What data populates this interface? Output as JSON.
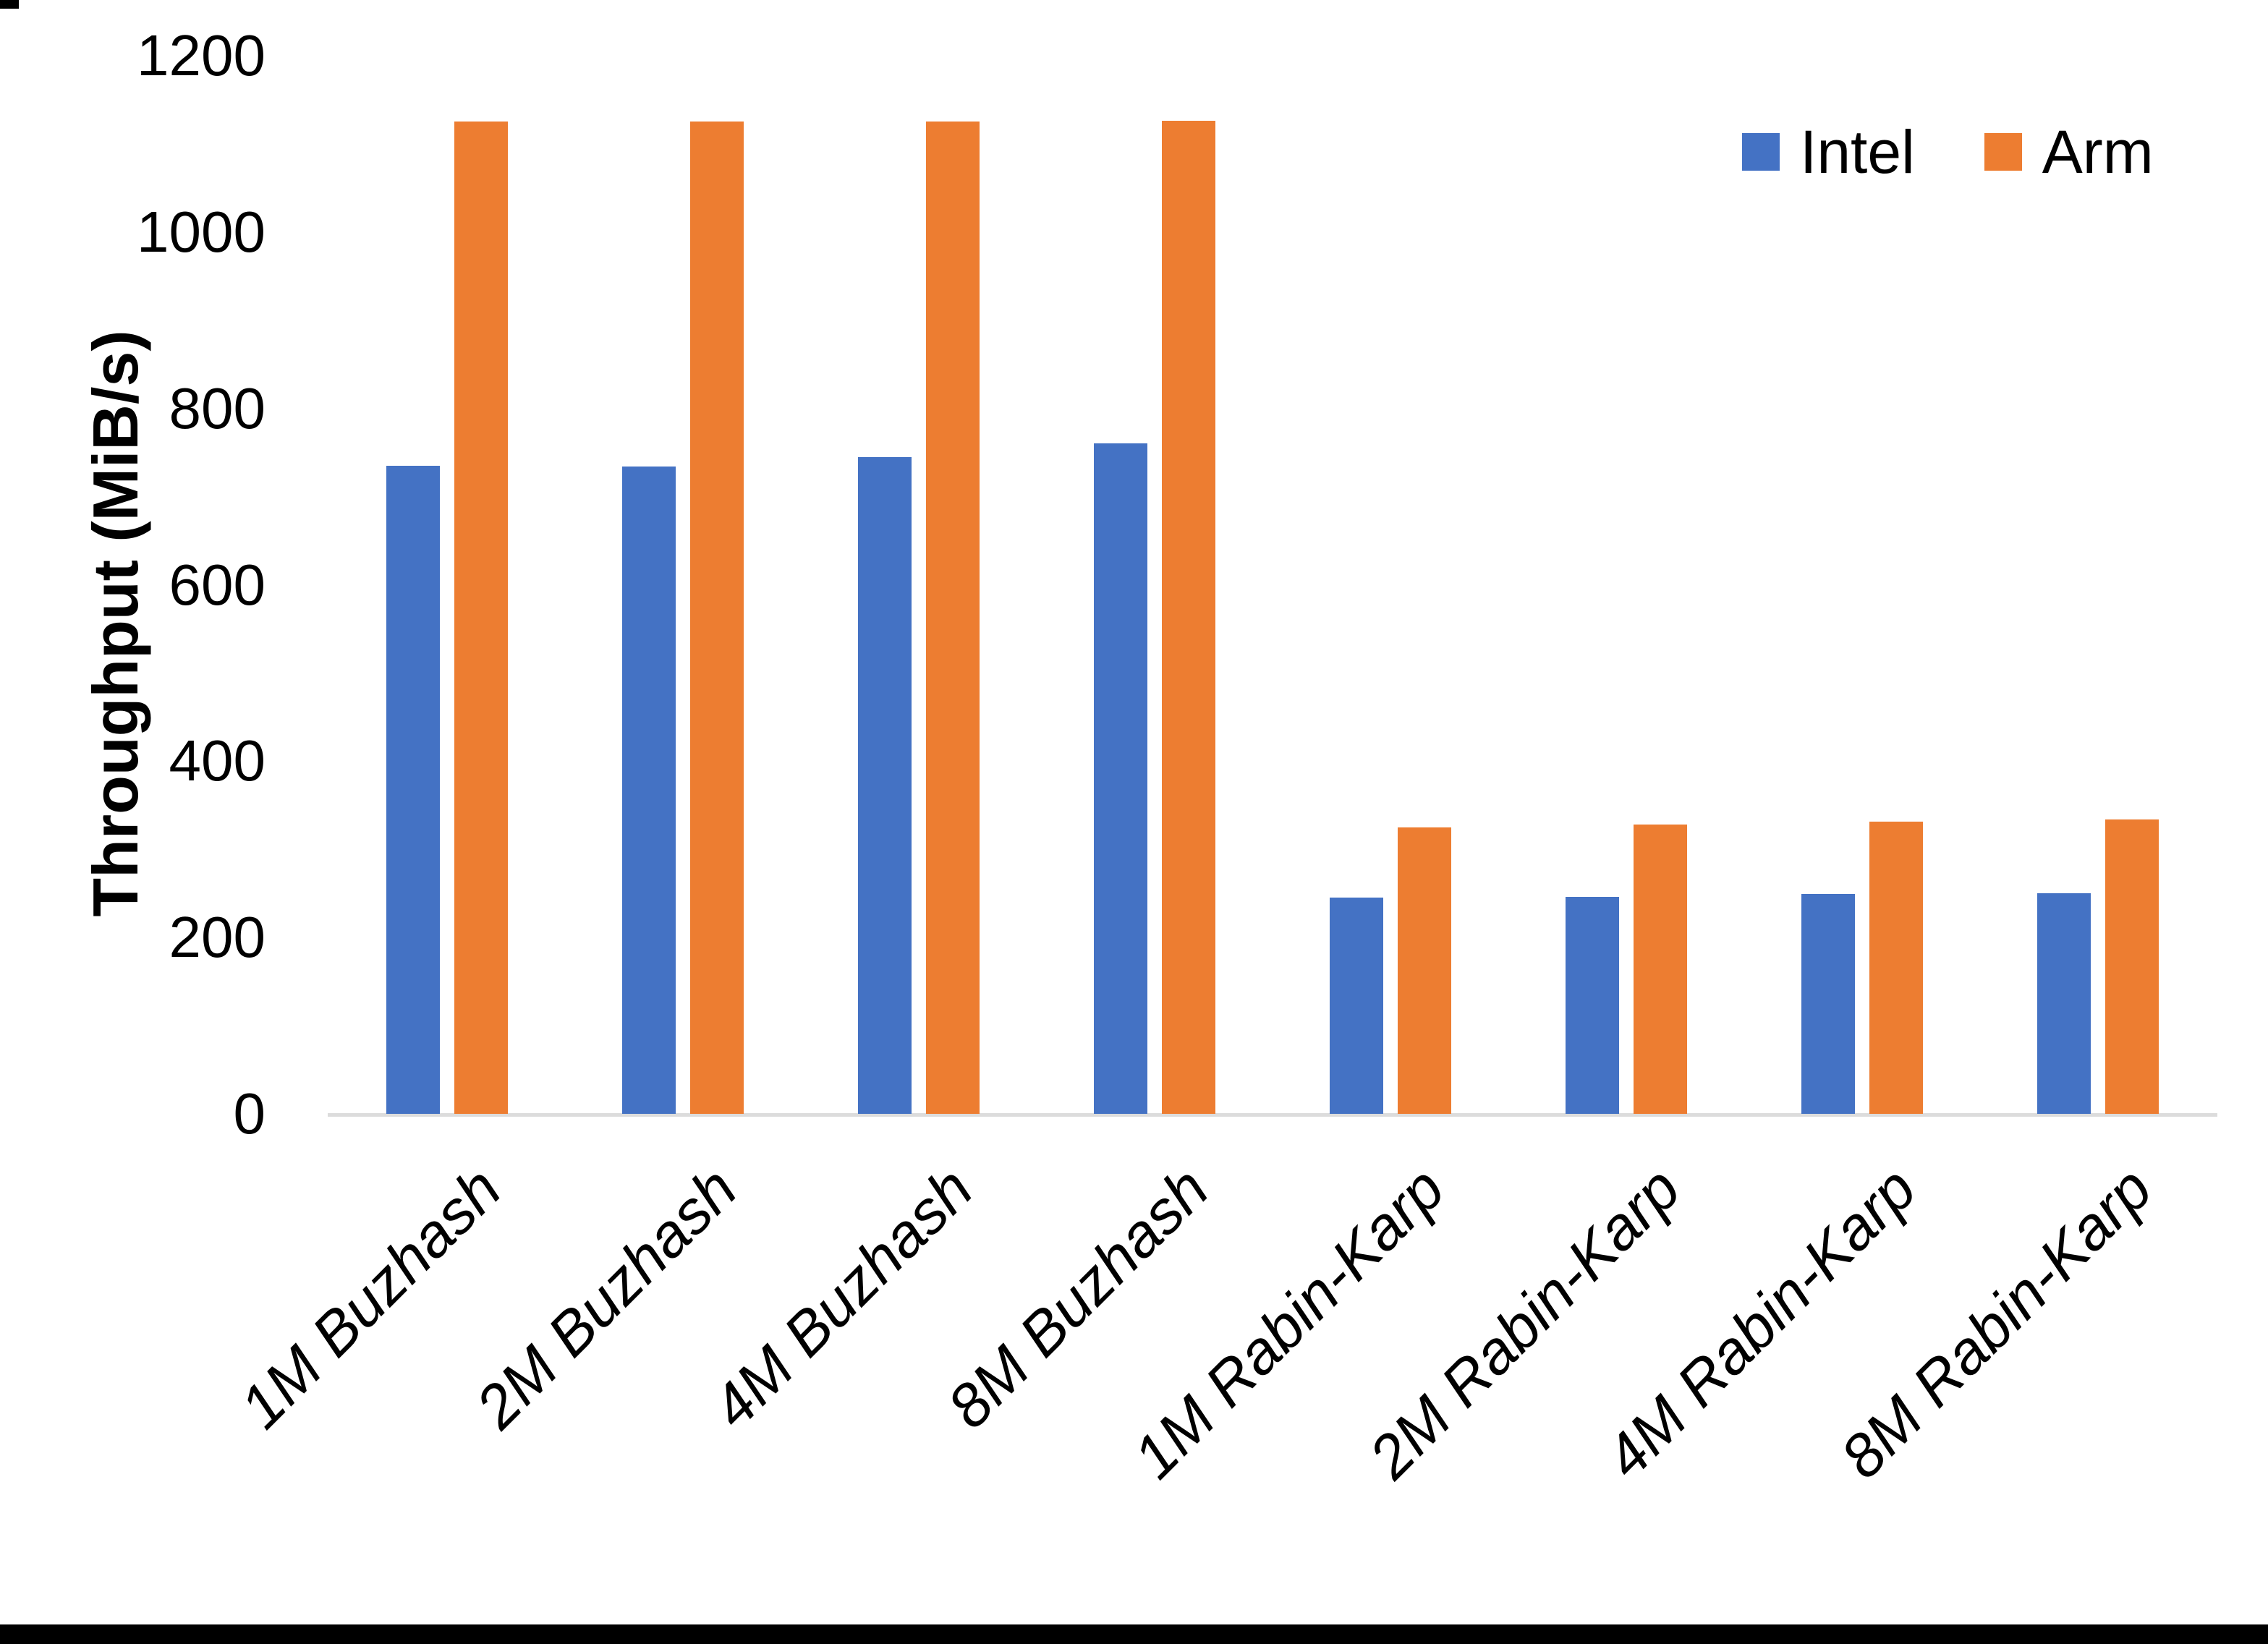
{
  "chart": {
    "ylabel": "Throughput (MiB/s)"
  },
  "chart_data": {
    "type": "bar",
    "title": "",
    "xlabel": "",
    "ylabel": "Throughput (MiB/s)",
    "categories": [
      "1M Buzhash",
      "2M Buzhash",
      "4M Buzhash",
      "8M Buzhash",
      "1M Rabin-Karp",
      "2M Rabin-Karp",
      "4M Rabin-Karp",
      "8M Rabin-Karp"
    ],
    "series": [
      {
        "name": "Intel",
        "color": "#4472C4",
        "values": [
          735,
          734,
          745,
          760,
          245,
          246,
          249,
          250
        ]
      },
      {
        "name": "Arm",
        "color": "#ED7D31",
        "values": [
          1125,
          1125,
          1125,
          1126,
          325,
          328,
          331,
          334
        ]
      }
    ],
    "ylim": [
      0,
      1200
    ],
    "yticks": [
      0,
      200,
      400,
      600,
      800,
      1000,
      1200
    ],
    "grid": false,
    "legend_position": "top-right",
    "colors": {
      "intel_blue": "#4472C4",
      "arm_orange": "#ED7D31",
      "axis_line": "#DCDCDC",
      "text": "#000000"
    }
  }
}
